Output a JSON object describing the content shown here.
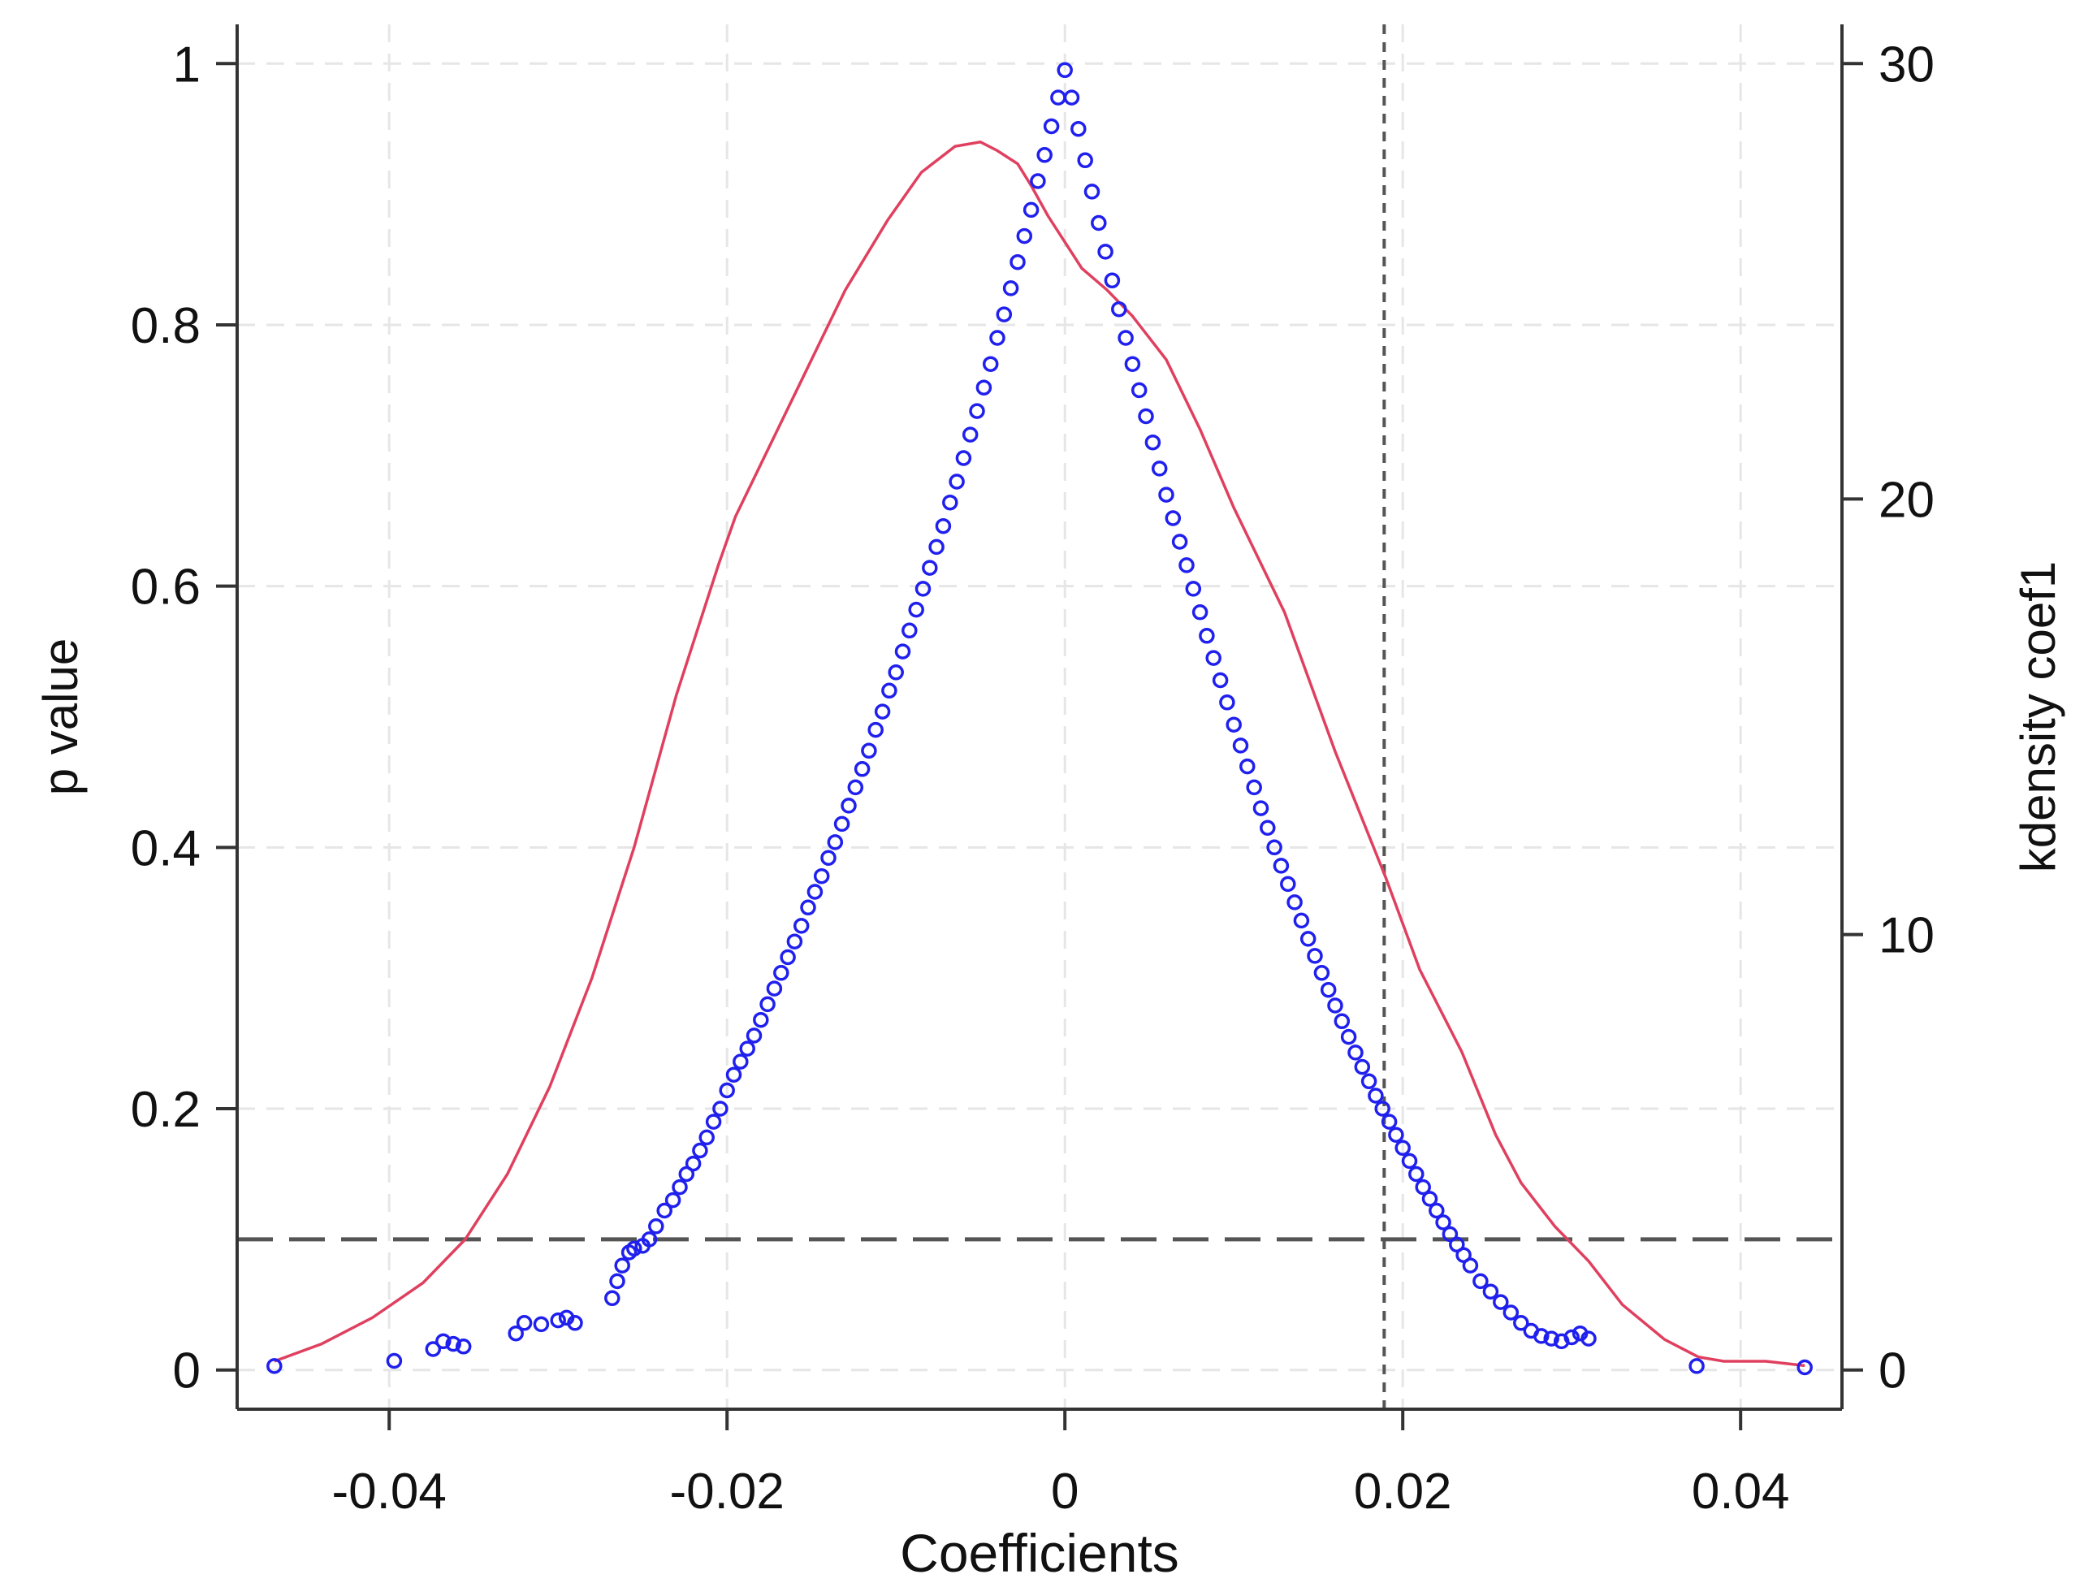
{
  "chart_data": {
    "type": "scatter",
    "xlabel": "Coefficients",
    "ylabel": "p value",
    "y2label": "kdensity coef1",
    "xlim": [
      -0.049,
      0.046
    ],
    "ylim": [
      -0.03,
      1.03
    ],
    "y2lim": [
      -0.9,
      30.9
    ],
    "x_ticks": [
      {
        "value": -0.04,
        "label": "-0.04"
      },
      {
        "value": -0.02,
        "label": "-0.02"
      },
      {
        "value": 0,
        "label": "0"
      },
      {
        "value": 0.02,
        "label": "0.02"
      },
      {
        "value": 0.04,
        "label": "0.04"
      }
    ],
    "y_ticks": [
      {
        "value": 0,
        "label": "0"
      },
      {
        "value": 0.2,
        "label": "0.2"
      },
      {
        "value": 0.4,
        "label": "0.4"
      },
      {
        "value": 0.6,
        "label": "0.6"
      },
      {
        "value": 0.8,
        "label": "0.8"
      },
      {
        "value": 1,
        "label": "1"
      }
    ],
    "y2_ticks": [
      {
        "value": 0,
        "label": "0"
      },
      {
        "value": 10,
        "label": "10"
      },
      {
        "value": 20,
        "label": "20"
      },
      {
        "value": 30,
        "label": "30"
      }
    ],
    "grid": true,
    "reference_lines": {
      "horizontal_p": 0.1,
      "vertical_x": 0.0189
    },
    "colors": {
      "points": "#2020ee",
      "density": "#e0405f",
      "reference": "#555555",
      "grid": "#e6e6e6",
      "axis": "#333333"
    },
    "series": [
      {
        "type": "scatter",
        "axis": "left",
        "x": [
          -0.0468,
          -0.0397,
          -0.0374,
          -0.0368,
          -0.0362,
          -0.0356,
          -0.0325,
          -0.032,
          -0.031,
          -0.03,
          -0.0295,
          -0.029,
          -0.0268,
          -0.0265,
          -0.0262,
          -0.0258,
          -0.0255,
          -0.025,
          -0.0246,
          -0.0242,
          -0.0237,
          -0.0232,
          -0.0228,
          -0.0224,
          -0.022,
          -0.0216,
          -0.0212,
          -0.0208,
          -0.0204,
          -0.02,
          -0.0196,
          -0.0192,
          -0.0188,
          -0.0184,
          -0.018,
          -0.0176,
          -0.0172,
          -0.0168,
          -0.0164,
          -0.016,
          -0.0156,
          -0.0152,
          -0.0148,
          -0.0144,
          -0.014,
          -0.0136,
          -0.0132,
          -0.0128,
          -0.0124,
          -0.012,
          -0.0116,
          -0.0112,
          -0.0108,
          -0.0104,
          -0.01,
          -0.0096,
          -0.0092,
          -0.0088,
          -0.0084,
          -0.008,
          -0.0076,
          -0.0072,
          -0.0068,
          -0.0064,
          -0.006,
          -0.0056,
          -0.0052,
          -0.0048,
          -0.0044,
          -0.004,
          -0.0036,
          -0.0032,
          -0.0028,
          -0.0024,
          -0.002,
          -0.0016,
          -0.0012,
          -0.0008,
          -0.0004,
          0.0,
          0.0004,
          0.0008,
          0.0012,
          0.0016,
          0.002,
          0.0024,
          0.0028,
          0.0032,
          0.0036,
          0.004,
          0.0044,
          0.0048,
          0.0052,
          0.0056,
          0.006,
          0.0064,
          0.0068,
          0.0072,
          0.0076,
          0.008,
          0.0084,
          0.0088,
          0.0092,
          0.0096,
          0.01,
          0.0104,
          0.0108,
          0.0112,
          0.0116,
          0.012,
          0.0124,
          0.0128,
          0.0132,
          0.0136,
          0.014,
          0.0144,
          0.0148,
          0.0152,
          0.0156,
          0.016,
          0.0164,
          0.0168,
          0.0172,
          0.0176,
          0.018,
          0.0184,
          0.0188,
          0.0192,
          0.0196,
          0.02,
          0.0204,
          0.0208,
          0.0212,
          0.0216,
          0.022,
          0.0224,
          0.0228,
          0.0232,
          0.0236,
          0.024,
          0.0246,
          0.0252,
          0.0258,
          0.0264,
          0.027,
          0.0276,
          0.0282,
          0.0288,
          0.0294,
          0.03,
          0.0305,
          0.031,
          0.0374,
          0.0438
        ],
        "y": [
          0.003,
          0.007,
          0.016,
          0.022,
          0.02,
          0.018,
          0.028,
          0.036,
          0.035,
          0.038,
          0.04,
          0.036,
          0.055,
          0.068,
          0.08,
          0.09,
          0.093,
          0.095,
          0.1,
          0.11,
          0.122,
          0.13,
          0.14,
          0.15,
          0.158,
          0.168,
          0.178,
          0.19,
          0.2,
          0.214,
          0.226,
          0.236,
          0.246,
          0.256,
          0.268,
          0.28,
          0.292,
          0.304,
          0.316,
          0.328,
          0.34,
          0.354,
          0.366,
          0.378,
          0.392,
          0.404,
          0.418,
          0.432,
          0.446,
          0.46,
          0.474,
          0.49,
          0.504,
          0.52,
          0.534,
          0.55,
          0.566,
          0.582,
          0.598,
          0.614,
          0.63,
          0.646,
          0.664,
          0.68,
          0.698,
          0.716,
          0.734,
          0.752,
          0.77,
          0.79,
          0.808,
          0.828,
          0.848,
          0.868,
          0.888,
          0.91,
          0.93,
          0.952,
          0.974,
          0.995,
          0.974,
          0.95,
          0.926,
          0.902,
          0.878,
          0.856,
          0.834,
          0.812,
          0.79,
          0.77,
          0.75,
          0.73,
          0.71,
          0.69,
          0.67,
          0.652,
          0.634,
          0.616,
          0.598,
          0.58,
          0.562,
          0.545,
          0.528,
          0.511,
          0.494,
          0.478,
          0.462,
          0.446,
          0.43,
          0.415,
          0.4,
          0.386,
          0.372,
          0.358,
          0.344,
          0.33,
          0.317,
          0.304,
          0.291,
          0.279,
          0.267,
          0.255,
          0.243,
          0.232,
          0.221,
          0.21,
          0.2,
          0.19,
          0.18,
          0.17,
          0.16,
          0.15,
          0.14,
          0.131,
          0.122,
          0.113,
          0.104,
          0.096,
          0.088,
          0.08,
          0.068,
          0.06,
          0.052,
          0.044,
          0.036,
          0.03,
          0.026,
          0.024,
          0.022,
          0.025,
          0.028,
          0.024,
          0.003,
          0.002
        ]
      },
      {
        "type": "line",
        "axis": "right",
        "name": "kdensity coef1",
        "x": [
          -0.0468,
          -0.044,
          -0.041,
          -0.038,
          -0.0355,
          -0.033,
          -0.0305,
          -0.028,
          -0.0255,
          -0.023,
          -0.0205,
          -0.0195,
          -0.018,
          -0.0155,
          -0.013,
          -0.0105,
          -0.0085,
          -0.0065,
          -0.005,
          -0.004,
          -0.0028,
          -0.002,
          -0.001,
          0.0,
          0.001,
          0.0025,
          0.004,
          0.006,
          0.008,
          0.01,
          0.013,
          0.016,
          0.019,
          0.021,
          0.0235,
          0.0255,
          0.027,
          0.029,
          0.031,
          0.033,
          0.0355,
          0.0375,
          0.039,
          0.0415,
          0.0438
        ],
        "y": [
          0.2,
          0.6,
          1.2,
          2.0,
          3.0,
          4.5,
          6.5,
          9.0,
          12.0,
          15.5,
          18.5,
          19.6,
          20.8,
          22.8,
          24.8,
          26.4,
          27.5,
          28.1,
          28.2,
          28.0,
          27.7,
          27.2,
          26.5,
          25.9,
          25.3,
          24.8,
          24.2,
          23.2,
          21.6,
          19.8,
          17.4,
          14.2,
          11.3,
          9.2,
          7.3,
          5.4,
          4.3,
          3.3,
          2.5,
          1.5,
          0.7,
          0.3,
          0.2,
          0.2,
          0.1
        ]
      }
    ]
  }
}
